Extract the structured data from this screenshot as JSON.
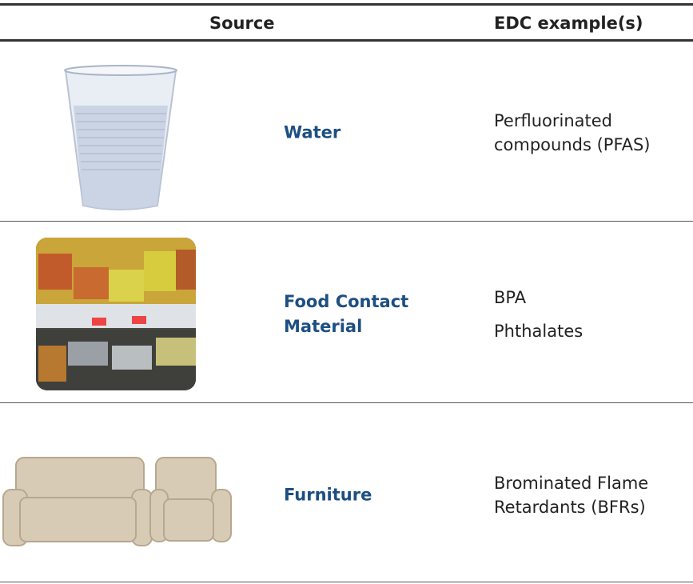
{
  "table": {
    "header": [
      "Source",
      "EDC example(s)"
    ],
    "rows": [
      {
        "source": "Water",
        "examples": [
          "Perfluorinated compounds (PFAS)"
        ]
      },
      {
        "source": "Food Contact Material",
        "examples": [
          "BPA",
          "Phthalates"
        ]
      },
      {
        "source": "Furniture",
        "examples": [
          "Brominated Flame Retardants (BFRs)"
        ]
      }
    ]
  }
}
